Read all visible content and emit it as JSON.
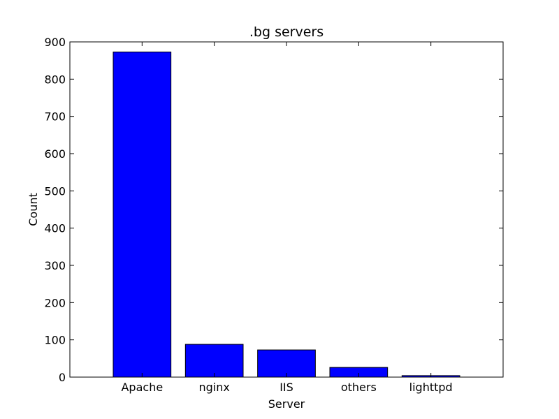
{
  "chart_data": {
    "type": "bar",
    "title": ".bg servers",
    "xlabel": "Server",
    "ylabel": "Count",
    "categories": [
      "Apache",
      "nginx",
      "IIS",
      "others",
      "lighttpd"
    ],
    "values": [
      873,
      88,
      73,
      26,
      4
    ],
    "ylim": [
      0,
      900
    ],
    "yticks": [
      "0",
      "100",
      "200",
      "300",
      "400",
      "500",
      "600",
      "700",
      "800",
      "900"
    ],
    "grid": false,
    "bar_color": "#0000ff",
    "edge_color": "#000000"
  }
}
